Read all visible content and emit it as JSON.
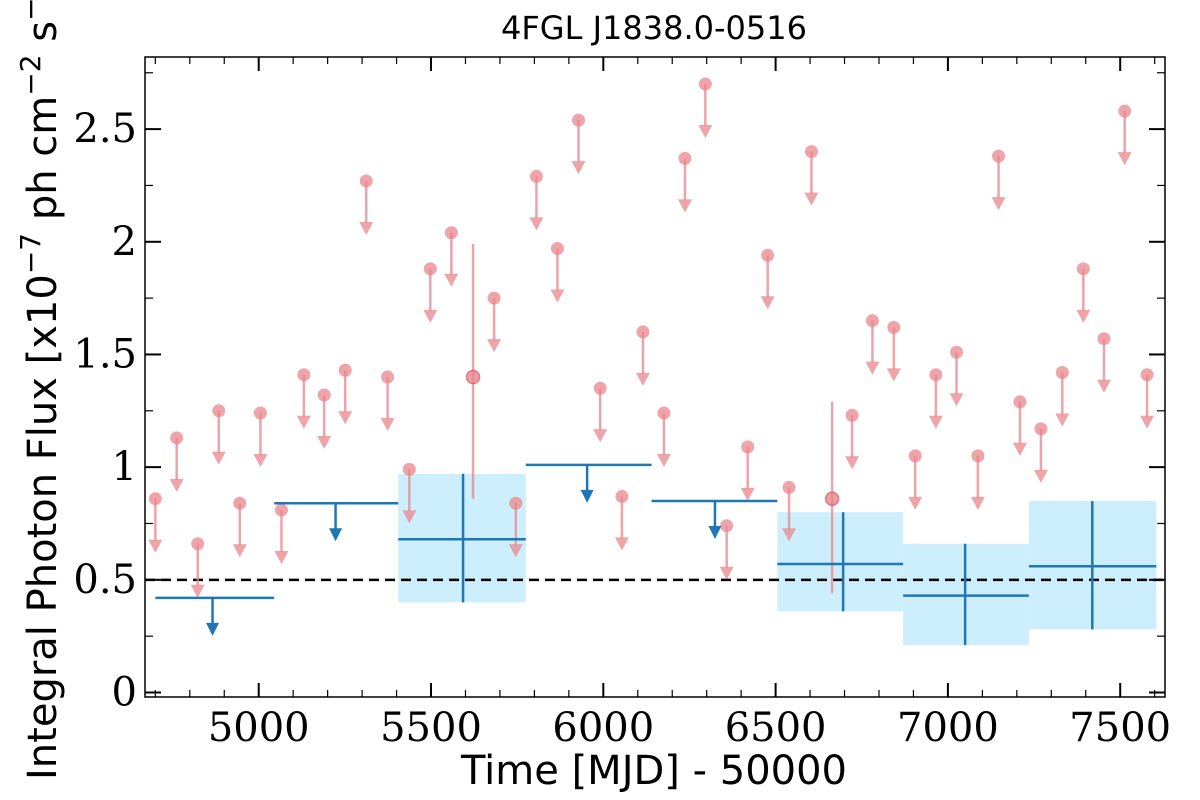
{
  "chart_data": {
    "type": "scatter",
    "title": "4FGL J1838.0-0516",
    "xlabel": "Time [MJD] - 50000",
    "ylabel_parts": {
      "prefix": "Integral Photon Flux [x10",
      "exp1": "−7",
      "mid": " ph cm",
      "exp2": "−2",
      "mid2": " s",
      "exp3": "−1",
      "suffix": "]"
    },
    "xlim": [
      4670,
      7630
    ],
    "ylim": [
      -0.02,
      2.82
    ],
    "x_ticks": [
      5000,
      5500,
      6000,
      6500,
      7000,
      7500
    ],
    "x_tick_labels": [
      "5000",
      "5500",
      "6000",
      "6500",
      "7000",
      "7500"
    ],
    "y_ticks": [
      0,
      0.5,
      1,
      1.5,
      2,
      2.5
    ],
    "y_tick_labels": [
      "0",
      "0.5",
      "1",
      "1.5",
      "2",
      "2.5"
    ],
    "reference_line": {
      "y": 0.5,
      "style": "dashed",
      "color": "#000000"
    },
    "colors": {
      "monthly": "#e8868b",
      "yearly": "#1f77b4",
      "yearly_band": "#cdeefc"
    },
    "monthly_upper_limits": [
      [
        4700,
        0.86
      ],
      [
        4762,
        1.13
      ],
      [
        4823,
        0.66
      ],
      [
        4884,
        1.25
      ],
      [
        4945,
        0.84
      ],
      [
        5005,
        1.24
      ],
      [
        5066,
        0.81
      ],
      [
        5131,
        1.41
      ],
      [
        5190,
        1.32
      ],
      [
        5251,
        1.43
      ],
      [
        5312,
        2.27
      ],
      [
        5374,
        1.4
      ],
      [
        5437,
        0.99
      ],
      [
        5498,
        1.88
      ],
      [
        5559,
        2.04
      ],
      [
        5683,
        1.75
      ],
      [
        5746,
        0.84
      ],
      [
        5806,
        2.29
      ],
      [
        5867,
        1.97
      ],
      [
        5928,
        2.54
      ],
      [
        5991,
        1.35
      ],
      [
        6054,
        0.87
      ],
      [
        6115,
        1.6
      ],
      [
        6176,
        1.24
      ],
      [
        6237,
        2.37
      ],
      [
        6296,
        2.7
      ],
      [
        6358,
        0.74
      ],
      [
        6419,
        1.09
      ],
      [
        6477,
        1.94
      ],
      [
        6539,
        0.91
      ],
      [
        6604,
        2.4
      ],
      [
        6722,
        1.23
      ],
      [
        6781,
        1.65
      ],
      [
        6843,
        1.62
      ],
      [
        6905,
        1.05
      ],
      [
        6965,
        1.41
      ],
      [
        7025,
        1.51
      ],
      [
        7087,
        1.05
      ],
      [
        7147,
        2.38
      ],
      [
        7209,
        1.29
      ],
      [
        7270,
        1.17
      ],
      [
        7332,
        1.42
      ],
      [
        7393,
        1.88
      ],
      [
        7453,
        1.57
      ],
      [
        7513,
        2.58
      ],
      [
        7578,
        1.41
      ]
    ],
    "monthly_detections": [
      {
        "x": 5622,
        "y": 1.4,
        "ylo": 0.86,
        "yhi": 1.99
      },
      {
        "x": 6664,
        "y": 0.86,
        "ylo": 0.44,
        "yhi": 1.29
      }
    ],
    "yearly_upper_limits": [
      {
        "x": 4866,
        "x0": 4700,
        "x1": 5045,
        "y": 0.42
      },
      {
        "x": 5223,
        "x0": 5045,
        "x1": 5405,
        "y": 0.84
      },
      {
        "x": 5953,
        "x0": 5775,
        "x1": 6140,
        "y": 1.01
      },
      {
        "x": 6324,
        "x0": 6140,
        "x1": 6505,
        "y": 0.85
      }
    ],
    "yearly_detections": [
      {
        "x": 5593,
        "x0": 5405,
        "x1": 5775,
        "y": 0.68,
        "ylo": 0.4,
        "yhi": 0.97
      },
      {
        "x": 6696,
        "x0": 6505,
        "x1": 6870,
        "y": 0.57,
        "ylo": 0.36,
        "yhi": 0.8
      },
      {
        "x": 7050,
        "x0": 6870,
        "x1": 7235,
        "y": 0.43,
        "ylo": 0.21,
        "yhi": 0.66
      },
      {
        "x": 7419,
        "x0": 7235,
        "x1": 7605,
        "y": 0.56,
        "ylo": 0.28,
        "yhi": 0.85
      }
    ]
  }
}
